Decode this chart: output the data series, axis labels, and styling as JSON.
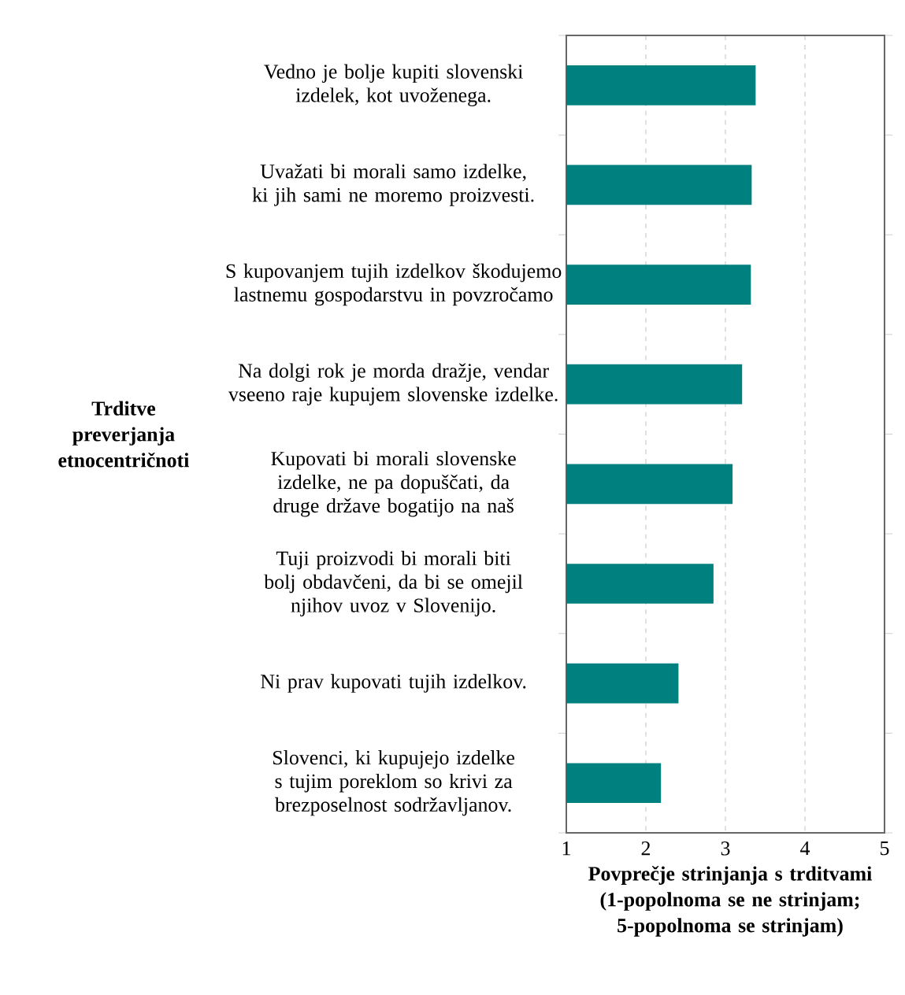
{
  "chart_data": {
    "type": "bar",
    "orientation": "horizontal",
    "categories": [
      "Vedno je bolje kupiti slovenski izdelek, kot uvoženega.",
      "Uvažati bi morali samo izdelke, ki jih sami ne moremo proizvesti.",
      "S kupovanjem tujih izdelkov škodujemo lastnemu gospodarstvu in povzročamo",
      "Na dolgi rok je morda dražje, vendar vseeno raje kupujem slovenske izdelke.",
      "Kupovati bi morali slovenske izdelke, ne pa dopuščati, da druge države bogatijo na naš",
      "Tuji proizvodi bi morali biti bolj obdavčeni, da bi se omejil njihov uvoz v Slovenijo.",
      "Ni prav kupovati tujih izdelkov.",
      "Slovenci, ki kupujejo izdelke s tujim poreklom so krivi za brezposelnost sodržavljanov."
    ],
    "values": [
      3.38,
      3.33,
      3.32,
      3.21,
      3.09,
      2.85,
      2.41,
      2.19
    ],
    "color": "#00807f",
    "xlim": [
      1,
      5
    ],
    "xticks": [
      1,
      2,
      3,
      4,
      5
    ],
    "xlabel": "Povprečje strinjanja s trditvami (1-popolnoma se ne strinjam; 5-popolnoma se strinjam)",
    "ylabel": "Trditve preverjanja etnocentričnoti",
    "grid": "x"
  }
}
